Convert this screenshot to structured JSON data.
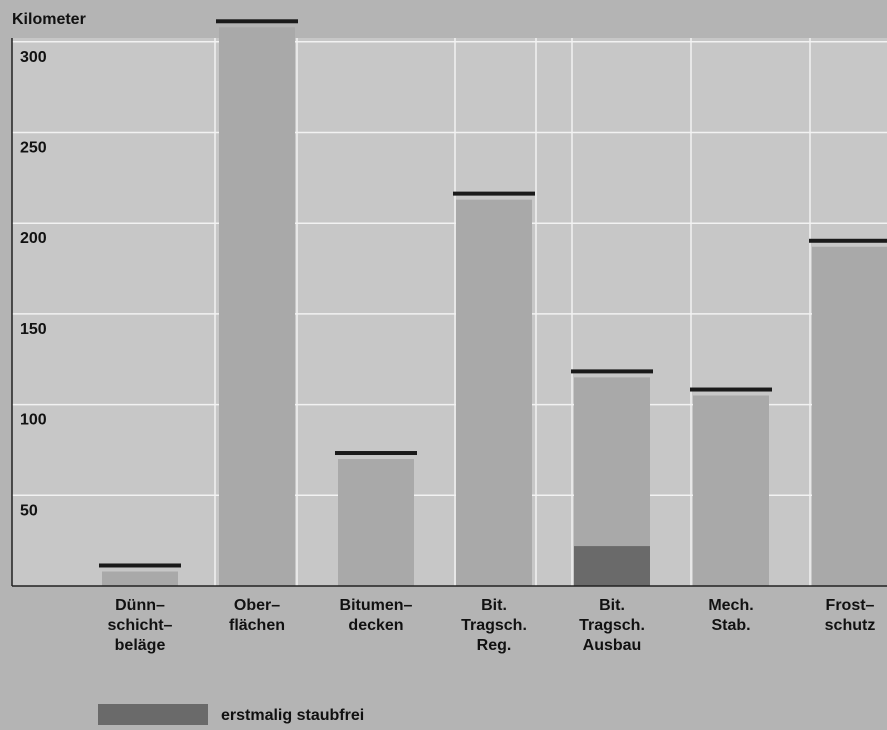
{
  "chart_data": {
    "type": "bar",
    "ylabel": "Kilometer",
    "ylim": [
      0,
      310
    ],
    "yticks": [
      50,
      100,
      150,
      200,
      250,
      300
    ],
    "grid": true,
    "categories": [
      [
        "Dünn–",
        "schicht–",
        "beläge"
      ],
      [
        "Ober–",
        "flächen"
      ],
      [
        "Bitumen–",
        "decken"
      ],
      [
        "Bit.",
        "Tragsch.",
        "Reg."
      ],
      [
        "Bit.",
        "Tragsch.",
        "Ausbau"
      ],
      [
        "Mech.",
        "Stab."
      ],
      [
        "Frost–",
        "schutz"
      ]
    ],
    "series": [
      {
        "values": [
          8,
          308,
          70,
          213,
          115,
          105,
          187
        ]
      },
      {
        "name": "erstmalig staubfrei",
        "values": [
          0,
          0,
          0,
          0,
          22,
          0,
          0
        ]
      }
    ],
    "legend_position": "bottom-left",
    "colors": {
      "background": "#b4b4b4",
      "plot_area": "#c7c7c7",
      "bar": "#a9a9a9",
      "highlight": "#6a6a6a",
      "cap": "#1a1a1a",
      "grid": "#f2f2f2"
    }
  }
}
